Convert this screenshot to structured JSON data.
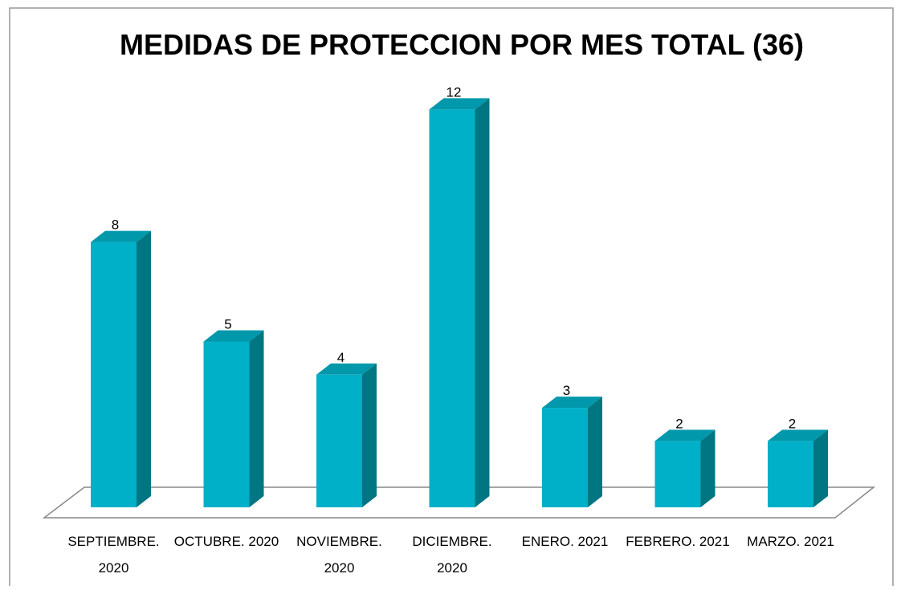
{
  "chart_data": {
    "type": "bar3d",
    "title": "MEDIDAS DE PROTECCION POR MES TOTAL (36)",
    "categories": [
      "SEPTIEMBRE. 2020",
      "OCTUBRE. 2020",
      "NOVIEMBRE. 2020",
      "DICIEMBRE. 2020",
      "ENERO. 2021",
      "FEBRERO. 2021",
      "MARZO. 2021"
    ],
    "values": [
      8,
      5,
      4,
      12,
      3,
      2,
      2
    ],
    "color": "#00b0c8"
  }
}
